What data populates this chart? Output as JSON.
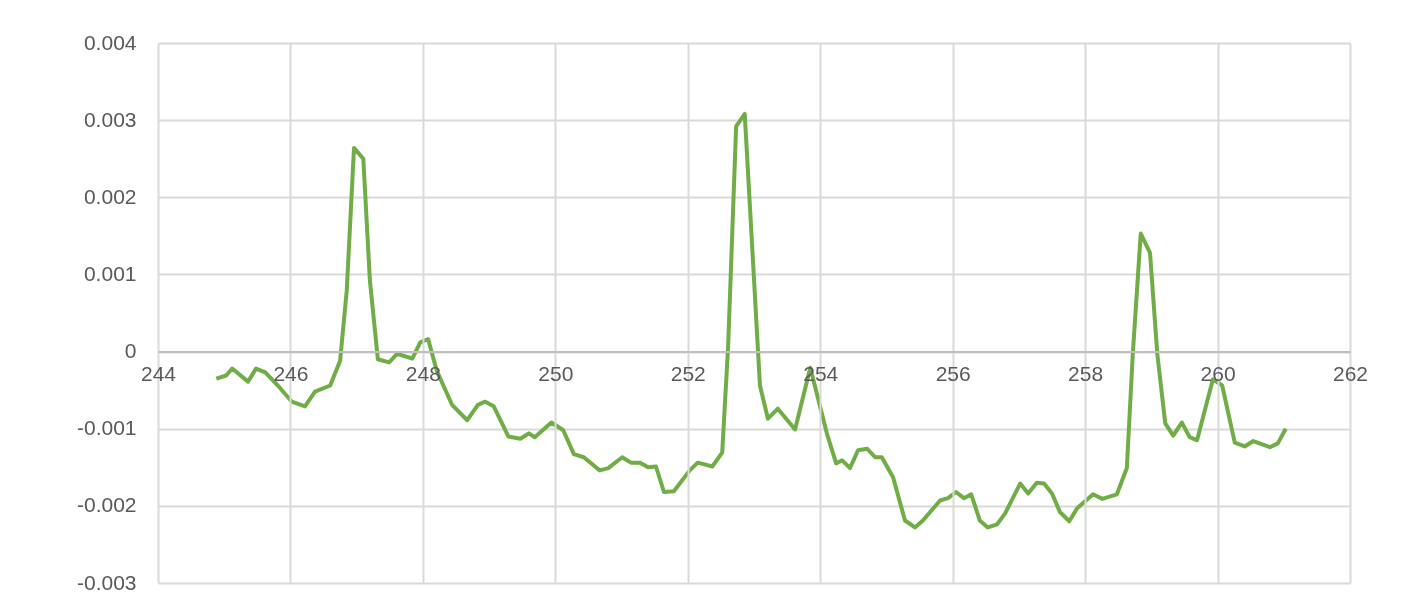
{
  "chart_data": {
    "type": "line",
    "xlim": [
      244,
      262
    ],
    "ylim": [
      -0.003,
      0.004
    ],
    "xticks": [
      244,
      246,
      248,
      250,
      252,
      254,
      256,
      258,
      260,
      262
    ],
    "yticks": [
      -0.003,
      -0.002,
      -0.001,
      0,
      0.001,
      0.002,
      0.003,
      0.004
    ],
    "grid": true,
    "marker": "none",
    "line_style": "solid",
    "series": [
      {
        "color": "#70ad47",
        "x": [
          244.88,
          245.03,
          245.12,
          245.36,
          245.48,
          245.62,
          245.81,
          246.02,
          246.22,
          246.37,
          246.6,
          246.75,
          246.85,
          246.96,
          247.1,
          247.2,
          247.32,
          247.49,
          247.61,
          247.84,
          247.96,
          248.08,
          248.21,
          248.44,
          248.67,
          248.83,
          248.94,
          249.07,
          249.29,
          249.47,
          249.6,
          249.69,
          249.94,
          250.12,
          250.28,
          250.43,
          250.67,
          250.8,
          251.01,
          251.14,
          251.28,
          251.4,
          251.52,
          251.64,
          251.79,
          252.03,
          252.15,
          252.37,
          252.52,
          252.61,
          252.73,
          252.86,
          253.09,
          253.21,
          253.36,
          253.62,
          253.85,
          254.1,
          254.24,
          254.33,
          254.45,
          254.57,
          254.71,
          254.83,
          254.93,
          255.1,
          255.28,
          255.43,
          255.55,
          255.81,
          255.93,
          256.05,
          256.17,
          256.28,
          256.41,
          256.53,
          256.67,
          256.79,
          257.02,
          257.14,
          257.27,
          257.38,
          257.5,
          257.62,
          257.76,
          257.88,
          258.12,
          258.26,
          258.48,
          258.63,
          258.72,
          258.84,
          258.98,
          259.09,
          259.21,
          259.33,
          259.46,
          259.58,
          259.69,
          259.93,
          260.07,
          260.26,
          260.41,
          260.54,
          260.79,
          260.91,
          261.03
        ],
        "values": [
          -0.00035,
          -0.00031,
          -0.00022,
          -0.00039,
          -0.00022,
          -0.00027,
          -0.00044,
          -0.00065,
          -0.00071,
          -0.00052,
          -0.00044,
          -0.00012,
          0.00079,
          0.00264,
          0.0025,
          0.00092,
          -0.0001,
          -0.00014,
          -3e-05,
          -9e-05,
          0.00012,
          0.00016,
          -0.00025,
          -0.00069,
          -0.00089,
          -0.00069,
          -0.00065,
          -0.00071,
          -0.0011,
          -0.00113,
          -0.00106,
          -0.00111,
          -0.00092,
          -0.00102,
          -0.00133,
          -0.00137,
          -0.00154,
          -0.00151,
          -0.00137,
          -0.00144,
          -0.00144,
          -0.0015,
          -0.00149,
          -0.00182,
          -0.00181,
          -0.00154,
          -0.00144,
          -0.00149,
          -0.00131,
          8e-05,
          0.00292,
          0.00308,
          -0.00044,
          -0.00087,
          -0.00074,
          -0.00101,
          -0.00021,
          -0.00106,
          -0.00145,
          -0.00141,
          -0.00151,
          -0.00128,
          -0.00126,
          -0.00137,
          -0.00137,
          -0.00163,
          -0.00219,
          -0.00228,
          -0.00219,
          -0.00193,
          -0.0019,
          -0.00182,
          -0.0019,
          -0.00185,
          -0.00219,
          -0.00228,
          -0.00224,
          -0.0021,
          -0.00171,
          -0.00184,
          -0.0017,
          -0.00171,
          -0.00184,
          -0.00208,
          -0.0022,
          -0.00203,
          -0.00185,
          -0.00191,
          -0.00185,
          -0.00151,
          -3e-05,
          0.00153,
          0.00128,
          -3e-05,
          -0.00093,
          -0.00109,
          -0.00092,
          -0.00111,
          -0.00115,
          -0.00036,
          -0.00044,
          -0.00118,
          -0.00123,
          -0.00116,
          -0.00124,
          -0.00119,
          -0.001
        ]
      }
    ]
  }
}
